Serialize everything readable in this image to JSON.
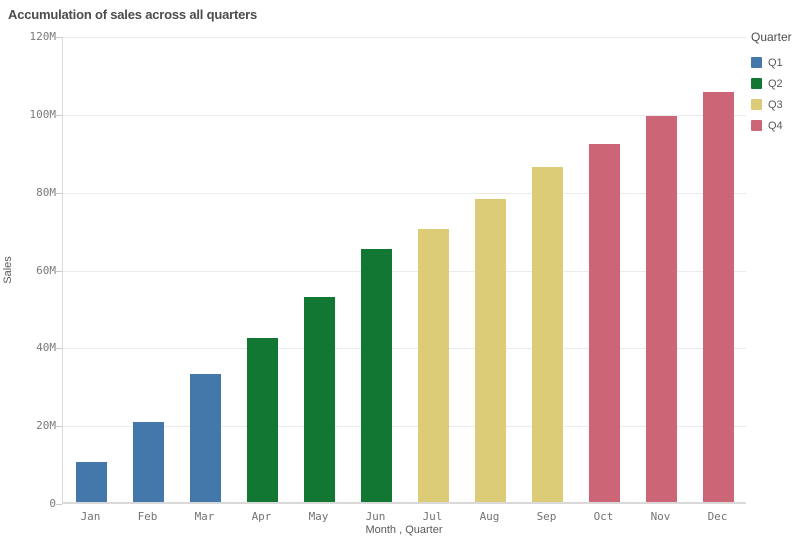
{
  "chart_data": {
    "type": "bar",
    "title": "Accumulation of sales across all quarters",
    "xlabel": "Month , Quarter",
    "ylabel": "Sales",
    "ylim_millions": [
      0,
      120
    ],
    "y_tick_labels": [
      "0",
      "20M",
      "40M",
      "60M",
      "80M",
      "100M",
      "120M"
    ],
    "y_tick_values_millions": [
      0,
      20,
      40,
      60,
      80,
      100,
      120
    ],
    "grid": true,
    "legend_position": "top-right",
    "categories": [
      "Jan",
      "Feb",
      "Mar",
      "Apr",
      "May",
      "Jun",
      "Jul",
      "Aug",
      "Sep",
      "Oct",
      "Nov",
      "Dec"
    ],
    "bars": [
      {
        "month": "Jan",
        "quarter": "Q1",
        "value_millions": 10.4
      },
      {
        "month": "Feb",
        "quarter": "Q1",
        "value_millions": 20.6
      },
      {
        "month": "Mar",
        "quarter": "Q1",
        "value_millions": 32.9
      },
      {
        "month": "Apr",
        "quarter": "Q2",
        "value_millions": 42.1
      },
      {
        "month": "May",
        "quarter": "Q2",
        "value_millions": 52.7
      },
      {
        "month": "Jun",
        "quarter": "Q2",
        "value_millions": 65.1
      },
      {
        "month": "Jul",
        "quarter": "Q3",
        "value_millions": 70.2
      },
      {
        "month": "Aug",
        "quarter": "Q3",
        "value_millions": 77.9
      },
      {
        "month": "Sep",
        "quarter": "Q3",
        "value_millions": 86.0
      },
      {
        "month": "Oct",
        "quarter": "Q4",
        "value_millions": 91.9
      },
      {
        "month": "Nov",
        "quarter": "Q4",
        "value_millions": 99.2
      },
      {
        "month": "Dec",
        "quarter": "Q4",
        "value_millions": 105.3
      }
    ],
    "legend": {
      "title": "Quarter",
      "entries": [
        {
          "label": "Q1",
          "color": "#4477aa"
        },
        {
          "label": "Q2",
          "color": "#117733"
        },
        {
          "label": "Q3",
          "color": "#ddcc77"
        },
        {
          "label": "Q4",
          "color": "#cc6677"
        }
      ]
    }
  },
  "colors": {
    "q1_blue": "#4477aa",
    "q2_green": "#117733",
    "q3_sand": "#ddcc77",
    "q4_rose": "#cc6677",
    "gridline": "#ebebeb",
    "axis_line": "#d9d9d9",
    "title_text": "#4c4c4c",
    "tick_text": "#737373",
    "axis_title_text": "#595959"
  }
}
